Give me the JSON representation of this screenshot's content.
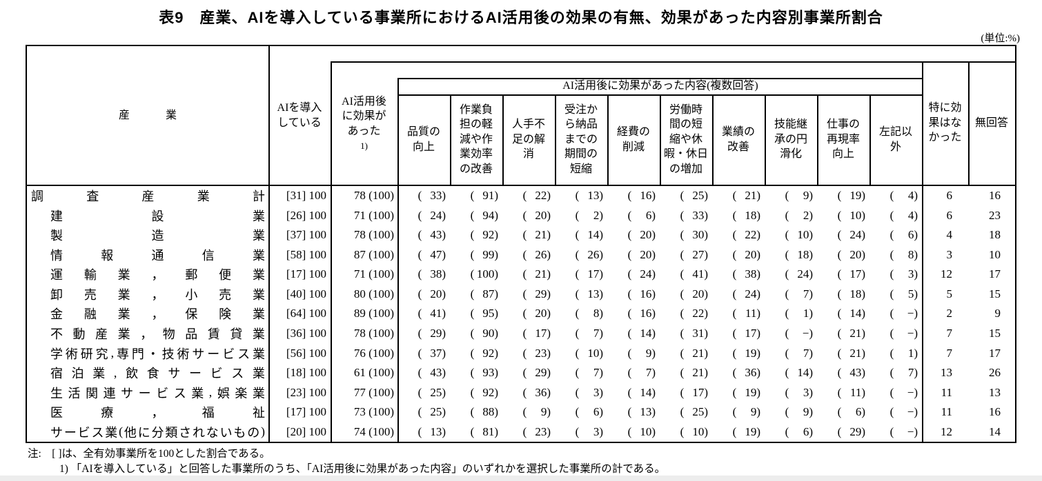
{
  "title": "表9　産業、AIを導入している事業所におけるAI活用後の効果の有無、効果があった内容別事業所割合",
  "unit_note": "(単位:%)",
  "table": {
    "col_industry": "産　業",
    "col_ai_introduced": "AIを導入\nしている",
    "col_effect": "AI活用後\nに効果が\nあった",
    "col_effect_note": "1)",
    "group_effect_content": "AI活用後に効果があった内容(複数回答)",
    "effect_columns": [
      "品質の\n向上",
      "作業負\n担の軽\n減や作\n業効率\nの改善",
      "人手不\n足の解\n消",
      "受注か\nら納品\nまでの\n期間の\n短縮",
      "経費の\n削減",
      "労働時\n間の短\n縮や休\n暇・休日\nの増加",
      "業績の\n改善",
      "技能継\n承の円\n滑化",
      "仕事の\n再現率\n向上",
      "左記以\n外"
    ],
    "col_no_effect": "特に効\n果はな\nかった",
    "col_no_answer": "無回答",
    "rows": [
      {
        "industry": "調査産業計",
        "is_total": true,
        "ai_bracket": "[31]",
        "ai_value": "100",
        "effect_value": "78",
        "effect_total": "(100)",
        "effects": [
          "33",
          "91",
          "22",
          "13",
          "16",
          "25",
          "21",
          "9",
          "19",
          "4"
        ],
        "no_effect": "6",
        "no_answer": "16"
      },
      {
        "industry": "建設業",
        "is_total": false,
        "ai_bracket": "[26]",
        "ai_value": "100",
        "effect_value": "71",
        "effect_total": "(100)",
        "effects": [
          "24",
          "94",
          "20",
          "2",
          "6",
          "33",
          "18",
          "2",
          "10",
          "4"
        ],
        "no_effect": "6",
        "no_answer": "23"
      },
      {
        "industry": "製造業",
        "is_total": false,
        "ai_bracket": "[37]",
        "ai_value": "100",
        "effect_value": "78",
        "effect_total": "(100)",
        "effects": [
          "43",
          "92",
          "21",
          "14",
          "20",
          "30",
          "22",
          "10",
          "24",
          "6"
        ],
        "no_effect": "4",
        "no_answer": "18"
      },
      {
        "industry": "情報通信業",
        "is_total": false,
        "ai_bracket": "[58]",
        "ai_value": "100",
        "effect_value": "87",
        "effect_total": "(100)",
        "effects": [
          "47",
          "99",
          "26",
          "26",
          "20",
          "27",
          "20",
          "18",
          "20",
          "8"
        ],
        "no_effect": "3",
        "no_answer": "10"
      },
      {
        "industry": "運輸業，郵便業",
        "is_total": false,
        "ai_bracket": "[17]",
        "ai_value": "100",
        "effect_value": "71",
        "effect_total": "(100)",
        "effects": [
          "38",
          "100",
          "21",
          "17",
          "24",
          "41",
          "38",
          "24",
          "17",
          "3"
        ],
        "no_effect": "12",
        "no_answer": "17"
      },
      {
        "industry": "卸売業，小売業",
        "is_total": false,
        "ai_bracket": "[40]",
        "ai_value": "100",
        "effect_value": "80",
        "effect_total": "(100)",
        "effects": [
          "20",
          "87",
          "29",
          "13",
          "16",
          "20",
          "24",
          "7",
          "18",
          "5"
        ],
        "no_effect": "5",
        "no_answer": "15"
      },
      {
        "industry": "金融業，保険業",
        "is_total": false,
        "ai_bracket": "[64]",
        "ai_value": "100",
        "effect_value": "89",
        "effect_total": "(100)",
        "effects": [
          "41",
          "95",
          "20",
          "8",
          "16",
          "22",
          "11",
          "1",
          "14",
          "−"
        ],
        "no_effect": "2",
        "no_answer": "9"
      },
      {
        "industry": "不動産業，物品賃貸業",
        "is_total": false,
        "ai_bracket": "[36]",
        "ai_value": "100",
        "effect_value": "78",
        "effect_total": "(100)",
        "effects": [
          "29",
          "90",
          "17",
          "7",
          "14",
          "31",
          "17",
          "−",
          "21",
          "−"
        ],
        "no_effect": "7",
        "no_answer": "15"
      },
      {
        "industry": "学術研究,専門・技術サービス業",
        "is_total": false,
        "ai_bracket": "[56]",
        "ai_value": "100",
        "effect_value": "76",
        "effect_total": "(100)",
        "effects": [
          "37",
          "92",
          "23",
          "10",
          "9",
          "21",
          "19",
          "7",
          "21",
          "1"
        ],
        "no_effect": "7",
        "no_answer": "17"
      },
      {
        "industry": "宿泊業,飲食サービス業",
        "is_total": false,
        "ai_bracket": "[18]",
        "ai_value": "100",
        "effect_value": "61",
        "effect_total": "(100)",
        "effects": [
          "43",
          "93",
          "29",
          "7",
          "7",
          "21",
          "36",
          "14",
          "43",
          "7"
        ],
        "no_effect": "13",
        "no_answer": "26"
      },
      {
        "industry": "生活関連サービス業,娯楽業",
        "is_total": false,
        "ai_bracket": "[23]",
        "ai_value": "100",
        "effect_value": "77",
        "effect_total": "(100)",
        "effects": [
          "25",
          "92",
          "36",
          "3",
          "14",
          "17",
          "19",
          "3",
          "11",
          "−"
        ],
        "no_effect": "11",
        "no_answer": "13"
      },
      {
        "industry": "医療，福祉",
        "is_total": false,
        "ai_bracket": "[17]",
        "ai_value": "100",
        "effect_value": "73",
        "effect_total": "(100)",
        "effects": [
          "25",
          "88",
          "9",
          "6",
          "13",
          "25",
          "9",
          "9",
          "6",
          "−"
        ],
        "no_effect": "11",
        "no_answer": "16"
      },
      {
        "industry": "サービス業(他に分類されないもの)",
        "is_total": false,
        "ai_bracket": "[20]",
        "ai_value": "100",
        "effect_value": "74",
        "effect_total": "(100)",
        "effects": [
          "13",
          "81",
          "23",
          "3",
          "10",
          "10",
          "19",
          "6",
          "29",
          "−"
        ],
        "no_effect": "12",
        "no_answer": "14"
      }
    ]
  },
  "notes": [
    "注:　[ ]は、全有効事業所を100とした割合である。",
    "1) 「AIを導入している」と回答した事業所のうち、「AI活用後に効果があった内容」のいずれかを選択した事業所の計である。"
  ]
}
